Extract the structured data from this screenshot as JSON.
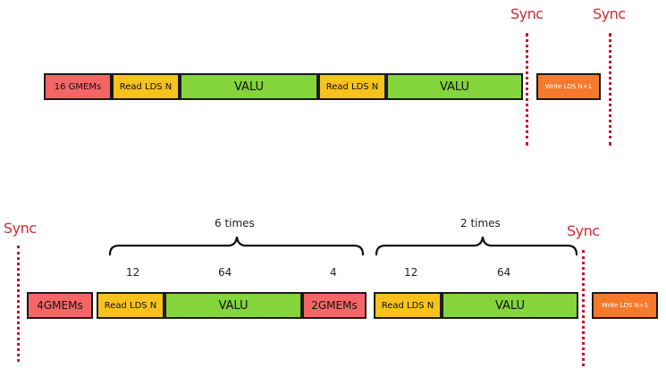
{
  "colors": {
    "gmem": "#f46666",
    "read_lds": "#f7c21b",
    "valu": "#84d43c",
    "write_lds": "#f57a2d",
    "sync": "#d22a35"
  },
  "top_row": {
    "gmem_label": "16 GMEMs",
    "read1_label": "Read LDS N",
    "valu1_label": "VALU",
    "read2_label": "Read LDS N",
    "valu2_label": "VALU",
    "write_label": "Write LDS N+1",
    "sync1_label": "Sync",
    "sync2_label": "Sync"
  },
  "bottom_row": {
    "sync_left_label": "Sync",
    "sync_right_label": "Sync",
    "brace1_label": "6 times",
    "brace2_label": "2 times",
    "count_read1": "12",
    "count_valu1": "64",
    "count_gmem2": "4",
    "count_read2": "12",
    "count_valu2": "64",
    "gmem1_label": "4GMEMs",
    "read1_label": "Read LDS N",
    "valu1_label": "VALU",
    "gmem2_label": "2GMEMs",
    "read2_label": "Read LDS N",
    "valu2_label": "VALU",
    "write_label": "Write LDS N+1"
  }
}
